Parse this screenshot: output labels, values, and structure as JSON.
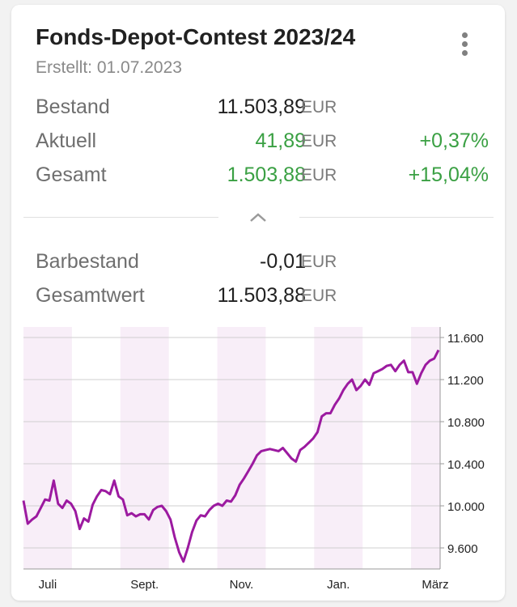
{
  "header": {
    "title": "Fonds-Depot-Contest 2023/24",
    "created": "Erstellt: 01.07.2023"
  },
  "summary": {
    "bestand": {
      "label": "Bestand",
      "value": "11.503,89",
      "currency": "EUR"
    },
    "aktuell": {
      "label": "Aktuell",
      "value": "41,89",
      "currency": "EUR",
      "percent": "+0,37%"
    },
    "gesamt": {
      "label": "Gesamt",
      "value": "1.503,88",
      "currency": "EUR",
      "percent": "+15,04%"
    }
  },
  "cash": {
    "barbestand": {
      "label": "Barbestand",
      "value": "-0,01",
      "currency": "EUR"
    },
    "gesamtwert": {
      "label": "Gesamtwert",
      "value": "11.503,88",
      "currency": "EUR"
    }
  },
  "colors": {
    "positive": "#3aa043",
    "line": "#9c1aa0",
    "band": "#f8eef8"
  },
  "icons": {
    "menu": "more-vert-icon",
    "collapse": "chevron-up-icon"
  },
  "chart_data": {
    "type": "line",
    "x_ticks": [
      "Juli",
      "Sept.",
      "Nov.",
      "Jan.",
      "März"
    ],
    "y_ticks": [
      9600,
      10000,
      10400,
      10800,
      11200,
      11600
    ],
    "y_tick_labels": [
      "9.600",
      "10.000",
      "10.400",
      "10.800",
      "11.200",
      "11.600"
    ],
    "ylim": [
      9400,
      11700
    ],
    "grid": true,
    "y_axis_position": "right",
    "series": [
      {
        "values": [
          10050,
          9830,
          9870,
          9900,
          9980,
          10060,
          10050,
          10240,
          10020,
          9980,
          10050,
          10020,
          9950,
          9780,
          9880,
          9850,
          10010,
          10090,
          10150,
          10140,
          10110,
          10240,
          10090,
          10060,
          9910,
          9930,
          9900,
          9920,
          9920,
          9870,
          9960,
          9990,
          10000,
          9950,
          9870,
          9700,
          9560,
          9470,
          9600,
          9750,
          9860,
          9910,
          9900,
          9960,
          10000,
          10020,
          10000,
          10050,
          10040,
          10100,
          10200,
          10260,
          10330,
          10400,
          10480,
          10520,
          10530,
          10540,
          10530,
          10520,
          10550,
          10500,
          10450,
          10420,
          10530,
          10560,
          10600,
          10640,
          10700,
          10850,
          10880,
          10880,
          10960,
          11020,
          11100,
          11160,
          11200,
          11100,
          11140,
          11200,
          11150,
          11260,
          11280,
          11300,
          11330,
          11340,
          11280,
          11340,
          11380,
          11270,
          11270,
          11160,
          11260,
          11340,
          11380,
          11400,
          11480
        ]
      }
    ]
  }
}
